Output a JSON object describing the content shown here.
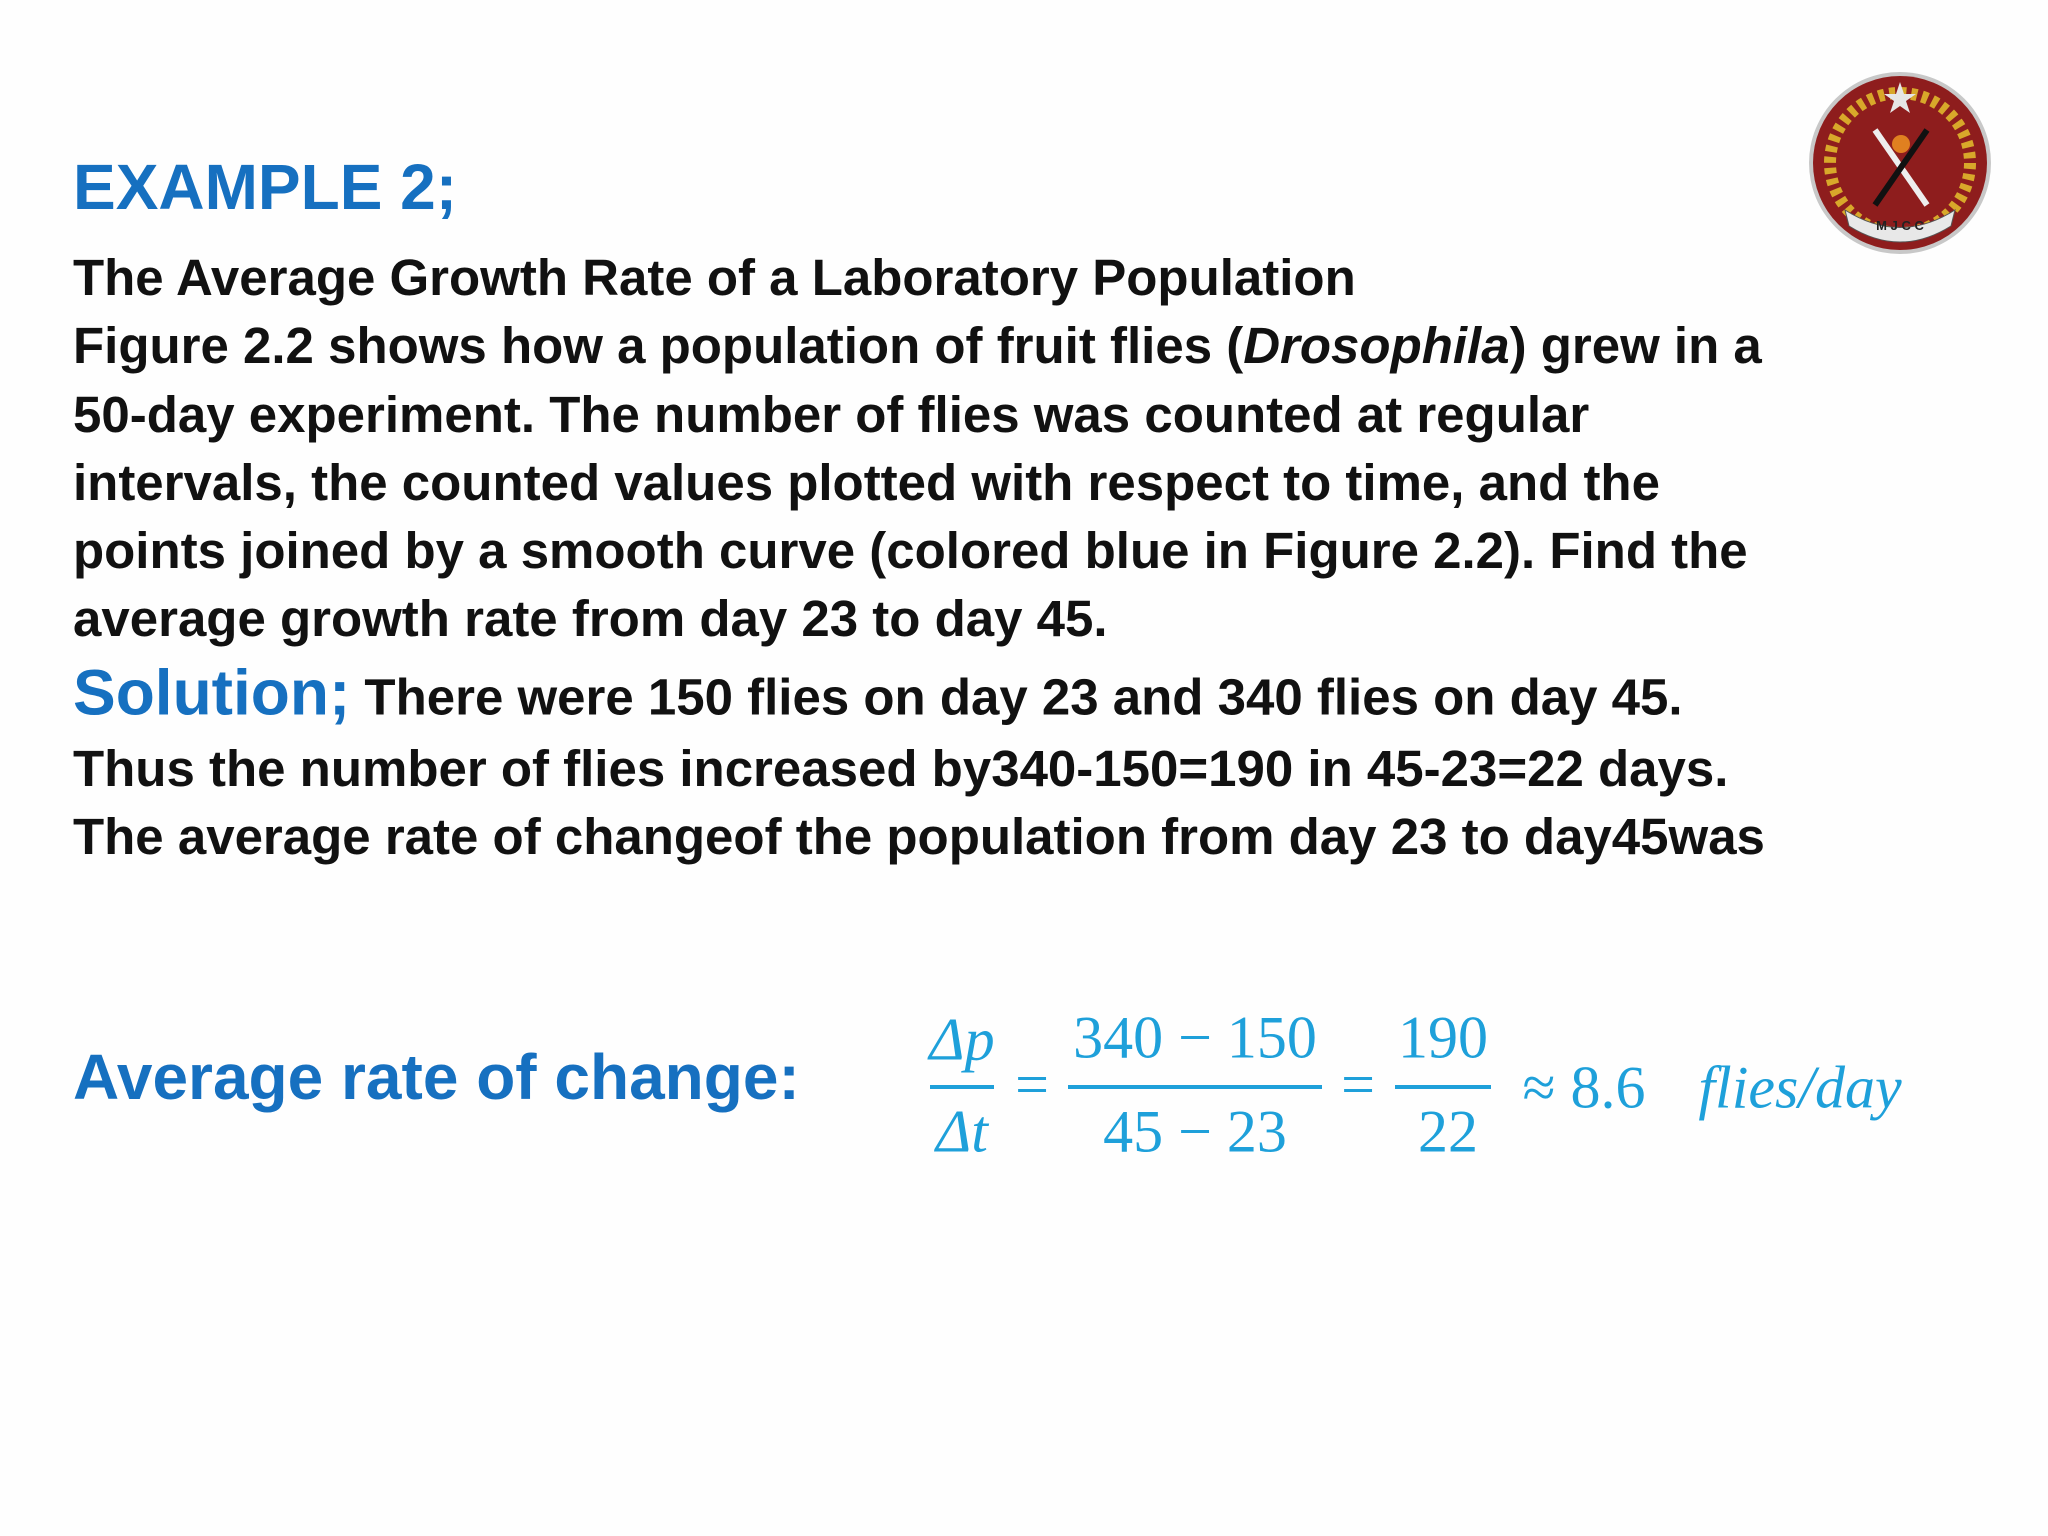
{
  "logo": {
    "label": "M J C C"
  },
  "heading": "EXAMPLE 2;",
  "problem": {
    "title": "The Average Growth Rate of a Laboratory Population",
    "first_line": {
      "before": "Figure 2.2 shows how a population of fruit flies (",
      "italic": "Drosophila",
      "after": ") grew in a"
    },
    "lines": [
      "50-day experiment. The number of flies was counted at regular",
      "intervals, the counted values plotted with respect to time, and the",
      "points joined by a smooth curve (colored blue in Figure 2.2). Find the",
      "average growth rate from day 23 to day 45."
    ]
  },
  "solution": {
    "label": "Solution;",
    "lines": [
      "There were 150 flies on day 23 and 340 flies on day 45.",
      "Thus the number of flies increased by340-150=190 in 45-23=22 days.",
      "The average rate of changeof the population from day 23 to day45was"
    ]
  },
  "result": {
    "label": "Average rate of change:",
    "formula": {
      "lhs_numerator": "Δp",
      "lhs_denominator": "Δt",
      "equals": [
        "=",
        "="
      ],
      "mid_numerator": "340 − 150",
      "mid_denominator": "45 − 23",
      "right_numerator": "190",
      "right_denominator": "22",
      "approx": "≈ 8.6",
      "unit": "flies/day"
    }
  }
}
